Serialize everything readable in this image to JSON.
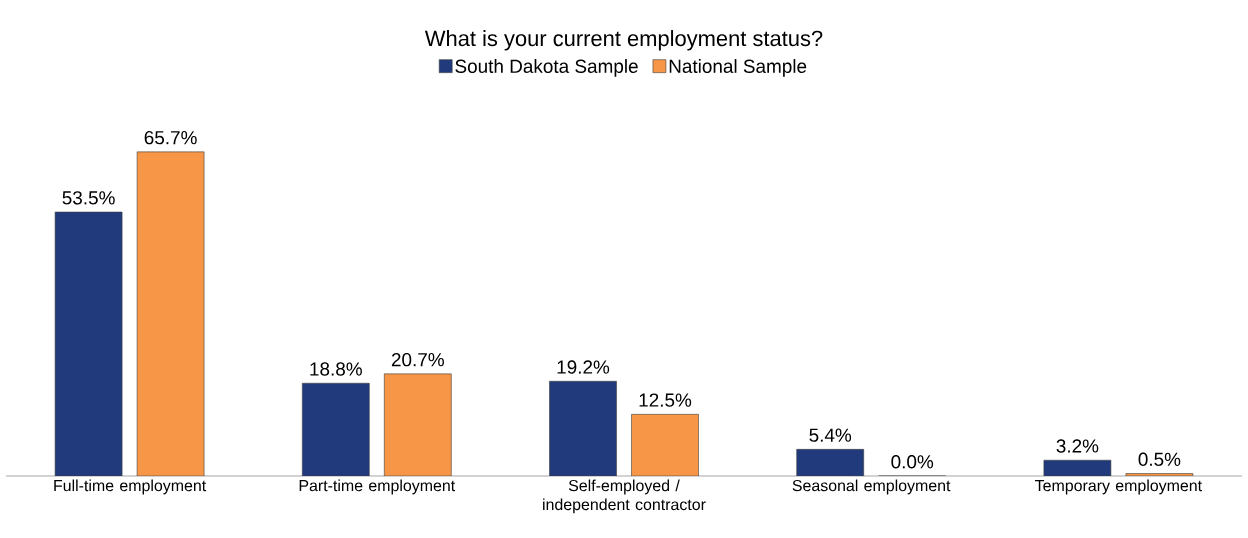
{
  "chart_data": {
    "type": "bar",
    "title": "What is your current employment status?",
    "categories": [
      "Full-time employment",
      "Part-time employment",
      "Self-employed / independent contractor",
      "Seasonal employment",
      "Temporary employment"
    ],
    "series": [
      {
        "name": "South Dakota Sample",
        "color": "#203a7c",
        "values": [
          53.5,
          18.8,
          19.2,
          5.4,
          3.2
        ],
        "value_labels": [
          "53.5%",
          "18.8%",
          "19.2%",
          "5.4%",
          "3.2%"
        ]
      },
      {
        "name": "National Sample",
        "color": "#f79646",
        "values": [
          65.7,
          20.7,
          12.5,
          0.0,
          0.5
        ],
        "value_labels": [
          "65.7%",
          "20.7%",
          "12.5%",
          "0.0%",
          "0.5%"
        ]
      }
    ],
    "legend": "top"
  }
}
